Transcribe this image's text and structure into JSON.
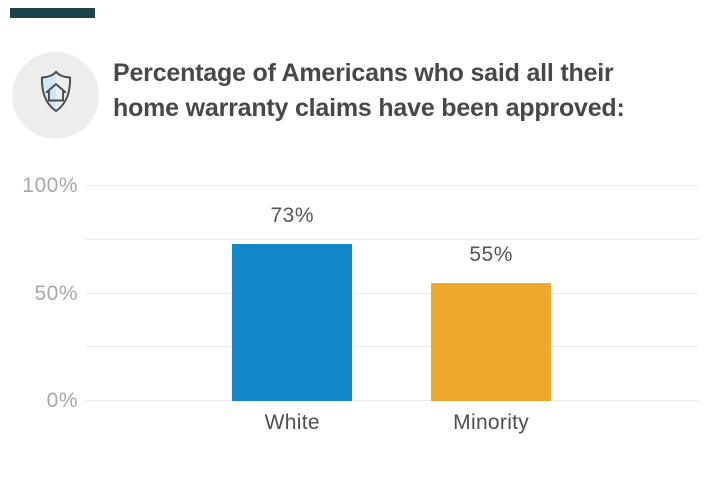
{
  "page": {
    "background": "#ffffff",
    "accent_bar_color": "#1d4449"
  },
  "header": {
    "icon": "shield-home-icon",
    "icon_circle_color": "#ededee",
    "icon_stroke_color": "#4b4b4e",
    "icon_accent_color": "#cfe8f7",
    "title_line1": "Percentage of Americans who said all their",
    "title_line2": "home warranty claims have been approved:",
    "title_color": "#48484a"
  },
  "chart_data": {
    "type": "bar",
    "title": "Percentage of Americans who said all their home warranty claims have been approved:",
    "categories": [
      "White",
      "Minority"
    ],
    "values": [
      73,
      55
    ],
    "value_labels": [
      "73%",
      "55%"
    ],
    "series": [
      {
        "name": "White",
        "value": 73,
        "color": "#1186c8"
      },
      {
        "name": "Minority",
        "value": 55,
        "color": "#eda92d"
      }
    ],
    "bar_colors": [
      "#1186c8",
      "#eda92d"
    ],
    "xlabel": "",
    "ylabel": "",
    "ylim": [
      0,
      100
    ],
    "yticks": [
      {
        "value": 100,
        "label": "100%"
      },
      {
        "value": 50,
        "label": "50%"
      },
      {
        "value": 0,
        "label": "0%"
      }
    ],
    "gridline_values": [
      100,
      75,
      50,
      25,
      0
    ],
    "grid": true,
    "legend": false,
    "gridline_color": "#e9e9ea",
    "axis_label_color": "#a7a7aa",
    "value_label_color": "#55555a",
    "category_label_color": "#4e4e52"
  }
}
